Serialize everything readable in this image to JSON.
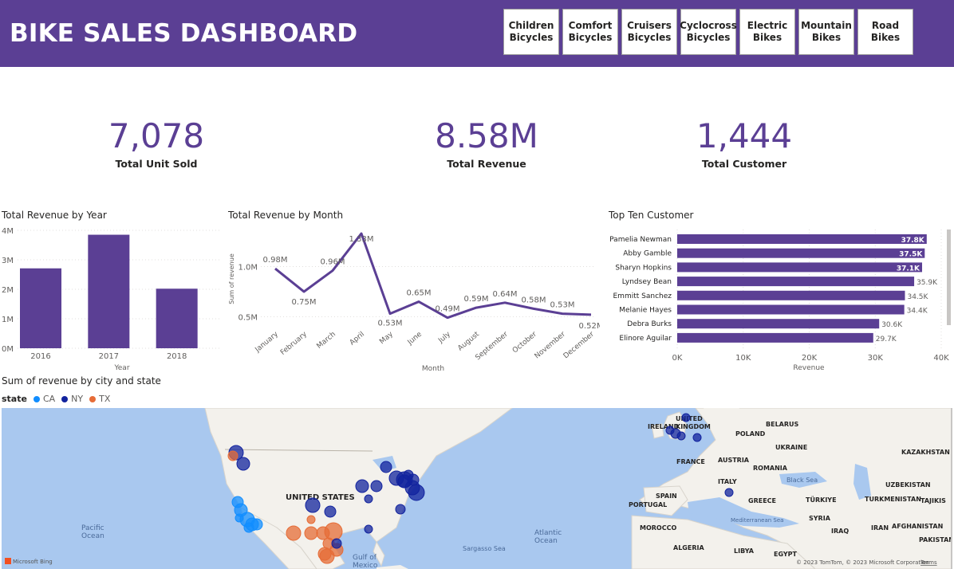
{
  "header": {
    "title": "BIKE SALES DASHBOARD",
    "slicers": [
      {
        "line1": "Children",
        "line2": "Bicycles"
      },
      {
        "line1": "Comfort",
        "line2": "Bicycles"
      },
      {
        "line1": "Cruisers",
        "line2": "Bicycles"
      },
      {
        "line1": "Cyclocross",
        "line2": "Bicycles"
      },
      {
        "line1": "Electric",
        "line2": "Bikes"
      },
      {
        "line1": "Mountain",
        "line2": "Bikes"
      },
      {
        "line1": "Road",
        "line2": "Bikes"
      }
    ]
  },
  "kpis": [
    {
      "value": "7,078",
      "label": "Total Unit Sold"
    },
    {
      "value": "8.58M",
      "label": "Total Revenue"
    },
    {
      "value": "1,444",
      "label": "Total Customer"
    }
  ],
  "colors": {
    "brand": "#5b3f94",
    "CA": "#118dff",
    "NY": "#12239e",
    "TX": "#e66c37"
  },
  "chart_data": [
    {
      "type": "bar",
      "title": "Total Revenue by Year",
      "categories": [
        "2016",
        "2017",
        "2018"
      ],
      "values": [
        2.71,
        3.85,
        2.02
      ],
      "xlabel": "Year",
      "ylabel": "",
      "ylim": [
        0,
        4
      ],
      "yticks": [
        "0M",
        "1M",
        "2M",
        "3M",
        "4M"
      ],
      "grid": true
    },
    {
      "type": "line",
      "title": "Total Revenue by Month",
      "categories": [
        "January",
        "February",
        "March",
        "April",
        "May",
        "June",
        "July",
        "August",
        "September",
        "October",
        "November",
        "December"
      ],
      "values": [
        0.98,
        0.75,
        0.96,
        1.33,
        0.53,
        0.65,
        0.49,
        0.59,
        0.64,
        0.58,
        0.53,
        0.52
      ],
      "labels": [
        "0.98M",
        "0.75M",
        "0.96M",
        "1.33M",
        "0.53M",
        "0.65M",
        "0.49M",
        "0.59M",
        "0.64M",
        "0.58M",
        "0.53M",
        "0.52M"
      ],
      "xlabel": "Month",
      "ylabel": "Sum of revenue",
      "yticks": [
        {
          "v": 0.5,
          "label": "0.5M"
        },
        {
          "v": 1.0,
          "label": "1.0M"
        }
      ],
      "grid": true
    },
    {
      "type": "bar",
      "orientation": "horizontal",
      "title": "Top Ten Customer",
      "categories": [
        "Pamelia Newman",
        "Abby Gamble",
        "Sharyn Hopkins",
        "Lyndsey Bean",
        "Emmitt Sanchez",
        "Melanie Hayes",
        "Debra Burks",
        "Elinore Aguilar"
      ],
      "values": [
        37.8,
        37.5,
        37.1,
        35.9,
        34.5,
        34.4,
        30.6,
        29.7
      ],
      "labels": [
        "37.8K",
        "37.5K",
        "37.1K",
        "35.9K",
        "34.5K",
        "34.4K",
        "30.6K",
        "29.7K"
      ],
      "xlabel": "Revenue",
      "ylabel": "",
      "xlim": [
        0,
        40
      ],
      "xticks": [
        "0K",
        "10K",
        "20K",
        "30K",
        "40K"
      ]
    }
  ],
  "map": {
    "title": "Sum of revenue by city and state",
    "legend_title": "state",
    "legend": [
      "CA",
      "NY",
      "TX"
    ],
    "labels": [
      "UNITED STATES",
      "Pacific Ocean",
      "Atlantic Ocean",
      "Gulf of Mexico",
      "Sargasso Sea",
      "UNITED KINGDOM",
      "IRELAND",
      "POLAND",
      "BELARUS",
      "UKRAINE",
      "FRANCE",
      "AUSTRIA",
      "ROMANIA",
      "ITALY",
      "SPAIN",
      "PORTUGAL",
      "GREECE",
      "TÜRKIYE",
      "Black Sea",
      "KAZAKHSTAN",
      "UZBEKISTAN",
      "TURKMENISTAN",
      "TAJIKIS",
      "SYRIA",
      "IRAQ",
      "IRAN",
      "AFGHANISTAN",
      "PAKISTAN",
      "MOROCCO",
      "ALGERIA",
      "LIBYA",
      "EGYPT",
      "Mediterranean Sea"
    ],
    "attribution": "© 2023 TomTom, © 2023 Microsoft Corporation",
    "terms": "Terms",
    "logo": "Microsoft Bing"
  }
}
